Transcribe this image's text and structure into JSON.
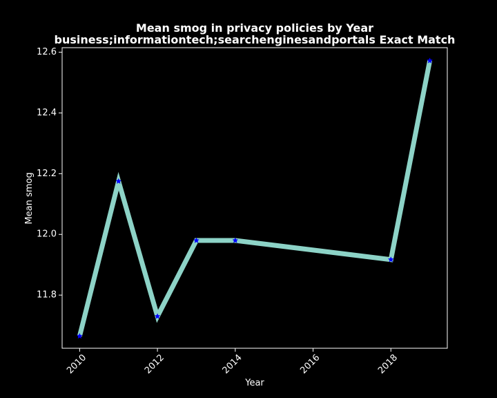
{
  "chart_data": {
    "type": "line",
    "title_line1": "Mean smog in privacy policies by Year",
    "title_line2": "business;informationtech;searchenginesandportals Exact Match",
    "xlabel": "Year",
    "ylabel": "Mean smog",
    "xlim": [
      2009.55,
      2019.45
    ],
    "ylim": [
      11.625,
      12.615
    ],
    "x_ticks": [
      2010,
      2012,
      2014,
      2016,
      2018
    ],
    "x_tick_labels": [
      "2010",
      "2012",
      "2014",
      "2016",
      "2018"
    ],
    "y_ticks": [
      11.8,
      12.0,
      12.2,
      12.4,
      12.6
    ],
    "y_tick_labels": [
      "11.8",
      "12.0",
      "12.2",
      "12.4",
      "12.6"
    ],
    "grid": false,
    "series": [
      {
        "name": "Mean smog",
        "x": [
          2010,
          2011,
          2012,
          2013,
          2014,
          2018,
          2019
        ],
        "values": [
          11.665,
          12.175,
          11.73,
          11.98,
          11.98,
          11.917,
          12.572
        ],
        "line_color": "#8dd3c7",
        "marker": "star",
        "marker_color": "#0000ff"
      }
    ],
    "colors": {
      "background": "#000000",
      "axes": "#ffffff",
      "text": "#ffffff"
    }
  }
}
